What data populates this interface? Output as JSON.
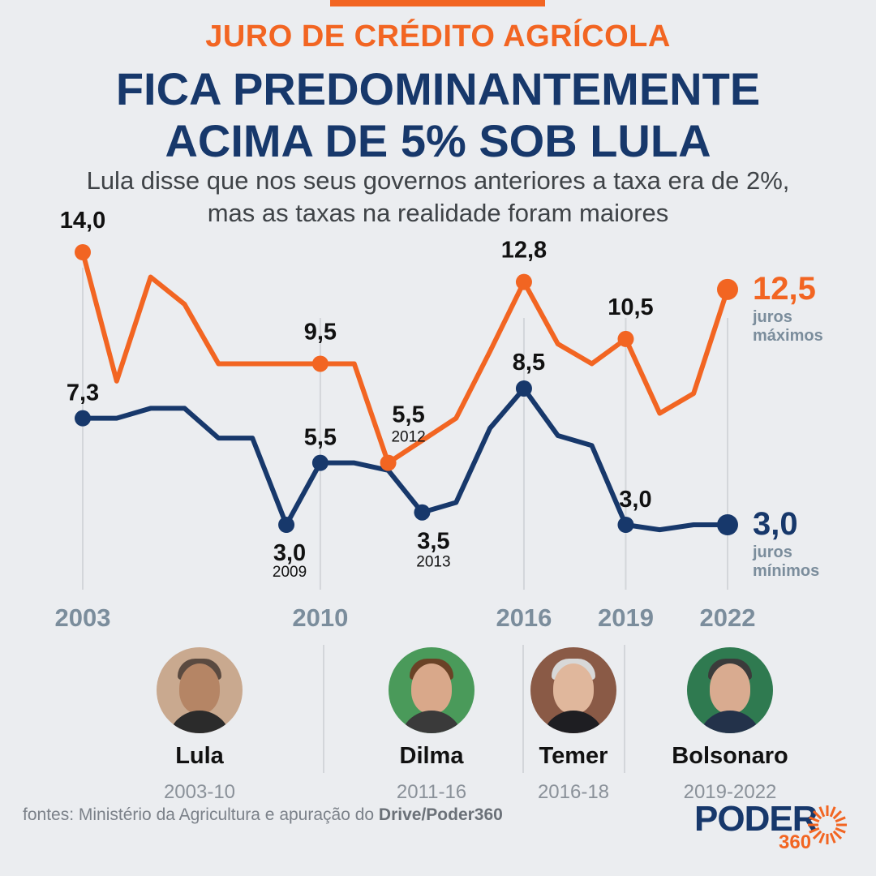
{
  "header": {
    "kicker": "JURO DE CRÉDITO AGRÍCOLA",
    "headline_line1": "FICA PREDOMINANTEMENTE",
    "headline_line2": "ACIMA DE 5% SOB LULA",
    "subtitle_line1": "Lula disse que nos seus governos anteriores a taxa era de 2%,",
    "subtitle_line2": "mas as taxas na realidade foram maiores"
  },
  "colors": {
    "orange": "#f26522",
    "navy": "#17386b",
    "axis_gray": "#7b8d9c"
  },
  "chart_data": {
    "type": "line",
    "x": [
      2003,
      2004,
      2005,
      2006,
      2007,
      2008,
      2009,
      2010,
      2011,
      2012,
      2013,
      2014,
      2015,
      2016,
      2017,
      2018,
      2019,
      2020,
      2021,
      2022
    ],
    "x_tick_labels": [
      "2003",
      "2010",
      "2016",
      "2019",
      "2022"
    ],
    "series": [
      {
        "name": "juros máximos",
        "label_lines": [
          "juros",
          "máximos"
        ],
        "end_label": "12,5",
        "color": "#f26522",
        "values": [
          14.0,
          8.8,
          13.0,
          11.9,
          9.5,
          9.5,
          9.5,
          9.5,
          9.5,
          5.5,
          6.4,
          7.3,
          10.0,
          12.8,
          10.3,
          9.5,
          10.5,
          7.5,
          8.3,
          12.5
        ]
      },
      {
        "name": "juros mínimos",
        "label_lines": [
          "juros",
          "mínimos"
        ],
        "end_label": "3,0",
        "color": "#17386b",
        "values": [
          7.3,
          7.3,
          7.7,
          7.7,
          6.5,
          6.5,
          3.0,
          5.5,
          5.5,
          5.2,
          3.5,
          3.9,
          6.9,
          8.5,
          6.6,
          6.2,
          3.0,
          2.8,
          3.0,
          3.0
        ]
      }
    ],
    "annotations": [
      {
        "series": 0,
        "index": 0,
        "text": "14,0"
      },
      {
        "series": 0,
        "index": 7,
        "text": "9,5"
      },
      {
        "series": 0,
        "index": 9,
        "text": "5,5",
        "year_text": "2012"
      },
      {
        "series": 0,
        "index": 13,
        "text": "12,8"
      },
      {
        "series": 0,
        "index": 16,
        "text": "10,5"
      },
      {
        "series": 1,
        "index": 0,
        "text": "7,3"
      },
      {
        "series": 1,
        "index": 6,
        "text": "3,0",
        "year_text": "2009"
      },
      {
        "series": 1,
        "index": 7,
        "text": "5,5"
      },
      {
        "series": 1,
        "index": 10,
        "text": "3,5",
        "year_text": "2013"
      },
      {
        "series": 1,
        "index": 13,
        "text": "8,5"
      },
      {
        "series": 1,
        "index": 16,
        "text": "3,0"
      }
    ],
    "grid": false
  },
  "presidents": [
    {
      "name": "Lula",
      "years": "2003-10",
      "photo": "lula-portrait"
    },
    {
      "name": "Dilma",
      "years": "2011-16",
      "photo": "dilma-portrait"
    },
    {
      "name": "Temer",
      "years": "2016-18",
      "photo": "temer-portrait"
    },
    {
      "name": "Bolsonaro",
      "years": "2019-2022",
      "photo": "bolsonaro-portrait"
    }
  ],
  "footer": {
    "source_prefix": "fontes: Ministério da Agricultura e apuração do ",
    "source_bold": "Drive/Poder360",
    "logo_text": "PODER",
    "logo_number": "360"
  }
}
